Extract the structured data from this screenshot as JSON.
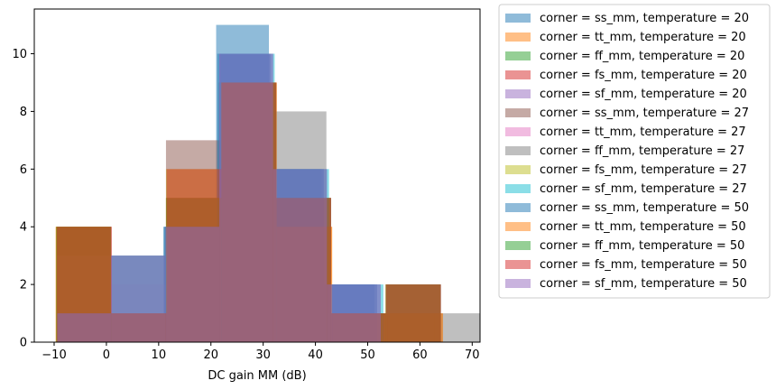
{
  "chart_data": {
    "type": "histogram",
    "title": "",
    "xlabel": "DC gain MM (dB)",
    "ylabel": "",
    "xlim": [
      -13.8,
      71.5
    ],
    "ylim": [
      0,
      11.55
    ],
    "xticks": [
      -10,
      0,
      10,
      20,
      30,
      40,
      50,
      60,
      70
    ],
    "yticks": [
      0,
      2,
      4,
      6,
      8,
      10
    ],
    "bar_opacity": 0.5,
    "legend_position": "outside-right",
    "series": [
      {
        "name": "corner = ss_mm, temperature = 20",
        "color": "#1f77b4",
        "bins": [
          [
            -9.3,
            0.8,
            1
          ],
          [
            0.8,
            10.9,
            1
          ],
          [
            10.9,
            21.0,
            4
          ],
          [
            21.0,
            31.1,
            11
          ],
          [
            31.1,
            41.2,
            6
          ],
          [
            41.2,
            51.3,
            2
          ],
          [
            51.3,
            61.4,
            0
          ],
          [
            61.4,
            71.5,
            0
          ]
        ]
      },
      {
        "name": "corner = tt_mm, temperature = 20",
        "color": "#ff7f0e",
        "bins": [
          [
            -9.7,
            0.8,
            4
          ],
          [
            0.8,
            11.4,
            1
          ],
          [
            11.4,
            22.0,
            5
          ],
          [
            22.0,
            32.6,
            9
          ],
          [
            32.6,
            43.2,
            4
          ],
          [
            43.2,
            53.8,
            1
          ],
          [
            53.8,
            64.4,
            1
          ],
          [
            64.4,
            75.0,
            0
          ]
        ]
      },
      {
        "name": "corner = ff_mm, temperature = 20",
        "color": "#2ca02c",
        "bins": [
          [
            -9.6,
            0.9,
            4
          ],
          [
            0.9,
            11.4,
            1
          ],
          [
            11.4,
            22.0,
            4
          ],
          [
            22.0,
            32.5,
            9
          ],
          [
            32.5,
            43.0,
            5
          ],
          [
            43.0,
            53.5,
            1
          ],
          [
            53.5,
            64.0,
            2
          ],
          [
            64.0,
            74.5,
            0
          ]
        ]
      },
      {
        "name": "corner = fs_mm, temperature = 20",
        "color": "#d62728",
        "bins": [
          [
            -9.5,
            1.0,
            4
          ],
          [
            1.0,
            11.5,
            1
          ],
          [
            11.5,
            22.0,
            5
          ],
          [
            22.0,
            32.5,
            9
          ],
          [
            32.5,
            43.0,
            5
          ],
          [
            43.0,
            53.5,
            1
          ],
          [
            53.5,
            64.0,
            2
          ],
          [
            64.0,
            74.5,
            0
          ]
        ]
      },
      {
        "name": "corner = sf_mm, temperature = 20",
        "color": "#9467bd",
        "bins": [
          [
            -9.4,
            0.9,
            1
          ],
          [
            0.9,
            11.3,
            3
          ],
          [
            11.3,
            21.6,
            4
          ],
          [
            21.6,
            31.9,
            10
          ],
          [
            31.9,
            42.2,
            6
          ],
          [
            42.2,
            52.5,
            2
          ],
          [
            52.5,
            62.8,
            0
          ],
          [
            62.8,
            73.1,
            0
          ]
        ]
      },
      {
        "name": "corner = ss_mm, temperature = 27",
        "color": "#8c564b",
        "bins": [
          [
            -9.6,
            0.9,
            4
          ],
          [
            0.9,
            11.4,
            1
          ],
          [
            11.4,
            21.9,
            7
          ],
          [
            21.9,
            32.4,
            9
          ],
          [
            32.4,
            42.9,
            4
          ],
          [
            42.9,
            53.4,
            1
          ],
          [
            53.4,
            63.9,
            2
          ],
          [
            63.9,
            74.4,
            0
          ]
        ]
      },
      {
        "name": "corner = tt_mm, temperature = 27",
        "color": "#e377c2",
        "bins": [
          [
            -9.5,
            1.0,
            3
          ],
          [
            1.0,
            11.5,
            2
          ],
          [
            11.5,
            22.0,
            5
          ],
          [
            22.0,
            32.5,
            9
          ],
          [
            32.5,
            43.0,
            5
          ],
          [
            43.0,
            53.5,
            1
          ],
          [
            53.5,
            64.0,
            2
          ],
          [
            64.0,
            74.5,
            0
          ]
        ]
      },
      {
        "name": "corner = ff_mm, temperature = 27",
        "color": "#7f7f7f",
        "bins": [
          [
            -9.4,
            0.9,
            1
          ],
          [
            0.9,
            11.2,
            3
          ],
          [
            11.2,
            21.5,
            4
          ],
          [
            21.5,
            31.8,
            9
          ],
          [
            31.8,
            42.1,
            8
          ],
          [
            42.1,
            52.4,
            1
          ],
          [
            52.4,
            62.7,
            1
          ],
          [
            62.7,
            73.0,
            1
          ]
        ]
      },
      {
        "name": "corner = fs_mm, temperature = 27",
        "color": "#bcbd22",
        "bins": [
          [
            -9.6,
            0.9,
            4
          ],
          [
            0.9,
            11.4,
            1
          ],
          [
            11.4,
            21.9,
            6
          ],
          [
            21.9,
            32.4,
            9
          ],
          [
            32.4,
            42.9,
            5
          ],
          [
            42.9,
            53.4,
            1
          ],
          [
            53.4,
            63.9,
            2
          ],
          [
            63.9,
            74.4,
            0
          ]
        ]
      },
      {
        "name": "corner = sf_mm, temperature = 27",
        "color": "#17becf",
        "bins": [
          [
            -9.4,
            1.0,
            1
          ],
          [
            1.0,
            11.4,
            3
          ],
          [
            11.4,
            21.8,
            4
          ],
          [
            21.8,
            32.2,
            10
          ],
          [
            32.2,
            42.6,
            6
          ],
          [
            42.6,
            53.0,
            2
          ],
          [
            53.0,
            63.4,
            0
          ],
          [
            63.4,
            73.8,
            0
          ]
        ]
      },
      {
        "name": "corner = ss_mm, temperature = 50",
        "color": "#1f77b4",
        "bins": [
          [
            -9.4,
            0.8,
            1
          ],
          [
            0.8,
            11.0,
            1
          ],
          [
            11.0,
            21.2,
            4
          ],
          [
            21.2,
            31.4,
            10
          ],
          [
            31.4,
            41.6,
            6
          ],
          [
            41.6,
            51.8,
            2
          ],
          [
            51.8,
            62.0,
            0
          ],
          [
            62.0,
            72.2,
            0
          ]
        ]
      },
      {
        "name": "corner = tt_mm, temperature = 50",
        "color": "#ff7f0e",
        "bins": [
          [
            -9.7,
            0.8,
            4
          ],
          [
            0.8,
            11.4,
            1
          ],
          [
            11.4,
            22.0,
            5
          ],
          [
            22.0,
            32.6,
            9
          ],
          [
            32.6,
            43.2,
            4
          ],
          [
            43.2,
            53.8,
            1
          ],
          [
            53.8,
            64.4,
            1
          ],
          [
            64.4,
            75.0,
            0
          ]
        ]
      },
      {
        "name": "corner = ff_mm, temperature = 50",
        "color": "#2ca02c",
        "bins": [
          [
            -9.6,
            0.9,
            4
          ],
          [
            0.9,
            11.4,
            1
          ],
          [
            11.4,
            22.0,
            5
          ],
          [
            22.0,
            32.5,
            9
          ],
          [
            32.5,
            43.0,
            5
          ],
          [
            43.0,
            53.5,
            1
          ],
          [
            53.5,
            64.0,
            2
          ],
          [
            64.0,
            74.5,
            0
          ]
        ]
      },
      {
        "name": "corner = fs_mm, temperature = 50",
        "color": "#d62728",
        "bins": [
          [
            -9.5,
            1.0,
            4
          ],
          [
            1.0,
            11.5,
            1
          ],
          [
            11.5,
            22.0,
            6
          ],
          [
            22.0,
            32.5,
            9
          ],
          [
            32.5,
            43.0,
            5
          ],
          [
            43.0,
            53.5,
            1
          ],
          [
            53.5,
            64.0,
            2
          ],
          [
            64.0,
            74.5,
            0
          ]
        ]
      },
      {
        "name": "corner = sf_mm, temperature = 50",
        "color": "#9467bd",
        "bins": [
          [
            -9.4,
            0.9,
            1
          ],
          [
            0.9,
            11.3,
            3
          ],
          [
            11.3,
            21.6,
            4
          ],
          [
            21.6,
            31.9,
            10
          ],
          [
            31.9,
            42.2,
            6
          ],
          [
            42.2,
            52.5,
            2
          ],
          [
            52.5,
            62.8,
            0
          ],
          [
            62.8,
            73.1,
            0
          ]
        ]
      }
    ]
  }
}
